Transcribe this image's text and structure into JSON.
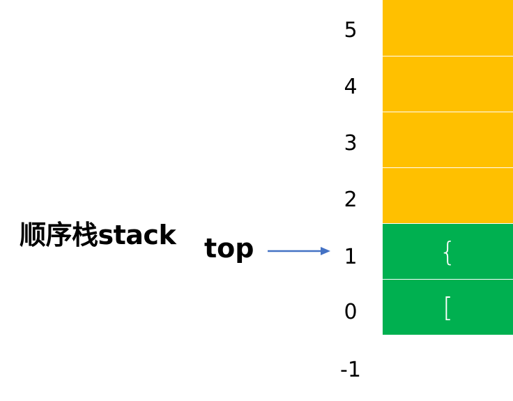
{
  "labels": {
    "stack_name": "顺序栈stack",
    "top_pointer": "top"
  },
  "indices": [
    "5",
    "4",
    "3",
    "2",
    "1",
    "0",
    "-1"
  ],
  "cells": [
    {
      "index": "5",
      "value": "",
      "state": "empty"
    },
    {
      "index": "4",
      "value": "",
      "state": "empty"
    },
    {
      "index": "3",
      "value": "",
      "state": "empty"
    },
    {
      "index": "2",
      "value": "",
      "state": "empty"
    },
    {
      "index": "1",
      "value": "{",
      "state": "filled"
    },
    {
      "index": "0",
      "value": "[",
      "state": "filled"
    }
  ],
  "colors": {
    "empty_cell": "#FFC000",
    "filled_cell": "#00B050",
    "arrow": "#4472C4"
  }
}
